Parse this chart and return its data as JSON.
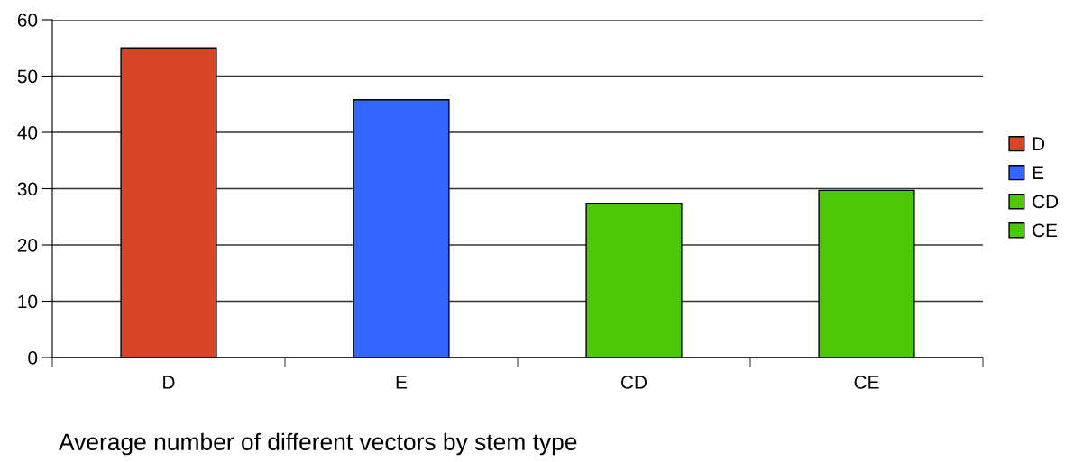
{
  "chart_data": {
    "type": "bar",
    "title": "Average number of different vectors by stem type",
    "categories": [
      "D",
      "E",
      "CD",
      "CE"
    ],
    "series": [
      {
        "name": "D",
        "color": "#d84527",
        "values": [
          55,
          null,
          null,
          null
        ]
      },
      {
        "name": "E",
        "color": "#3366ff",
        "values": [
          null,
          45.8,
          null,
          null
        ]
      },
      {
        "name": "CD",
        "color": "#4cc808",
        "values": [
          null,
          null,
          27.4,
          null
        ]
      },
      {
        "name": "CE",
        "color": "#4cc808",
        "values": [
          null,
          null,
          null,
          29.7
        ]
      }
    ],
    "ylim": [
      0,
      60
    ],
    "yticks": [
      0,
      10,
      20,
      30,
      40,
      50,
      60
    ],
    "grid": "y",
    "legend": "right",
    "stacked": true
  }
}
